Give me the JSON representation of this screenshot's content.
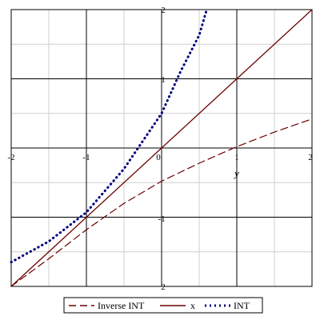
{
  "chart_data": {
    "type": "line",
    "title": "",
    "xlabel": "y",
    "ylabel": "",
    "xlim": [
      -2,
      2
    ],
    "ylim": [
      -2,
      2
    ],
    "grid": true,
    "legend_position": "bottom-center",
    "x_tick_labels": [
      "-2",
      "-1",
      "0",
      "1",
      "2"
    ],
    "y_tick_labels": [
      "2",
      "1",
      "-1",
      "2"
    ],
    "colors": {
      "series_line": "#6b0000",
      "int_series": "#000080",
      "grid_major": "#000000",
      "grid_minor": "#cfcfcf"
    },
    "series": [
      {
        "name": "Inverse INT",
        "style": "dash",
        "color": "#6b0000",
        "points": [
          [
            -2,
            -2.0
          ],
          [
            -1.5,
            -1.6
          ],
          [
            -1,
            -1.18
          ],
          [
            -0.5,
            -0.8
          ],
          [
            0,
            -0.48
          ],
          [
            0.5,
            -0.22
          ],
          [
            1,
            0.02
          ],
          [
            1.5,
            0.23
          ],
          [
            2,
            0.42
          ]
        ]
      },
      {
        "name": "x",
        "style": "solid",
        "color": "#6b0000",
        "points": [
          [
            -2,
            -2
          ],
          [
            2,
            2
          ]
        ]
      },
      {
        "name": "INT",
        "style": "dot",
        "color": "#000080",
        "points": [
          [
            -2,
            -1.65
          ],
          [
            -1.5,
            -1.35
          ],
          [
            -1,
            -0.93
          ],
          [
            -0.5,
            -0.3
          ],
          [
            -0.25,
            0.1
          ],
          [
            0,
            0.5
          ],
          [
            0.25,
            1.1
          ],
          [
            0.5,
            1.63
          ],
          [
            0.6,
            2.0
          ]
        ]
      }
    ]
  }
}
